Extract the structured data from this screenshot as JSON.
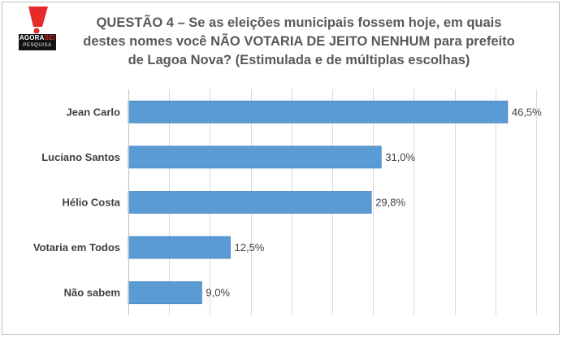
{
  "logo": {
    "brand_a": "AGORA",
    "brand_b": "SEI",
    "sub": "PESQUISA"
  },
  "title_lines": [
    "QUESTÃO 4 – Se as eleições municipais fossem hoje, em quais",
    "destes nomes você NÃO VOTARIA DE JEITO NENHUM para prefeito",
    "de Lagoa Nova? (Estimulada e de múltiplas escolhas)"
  ],
  "chart_data": {
    "type": "bar",
    "orientation": "horizontal",
    "title": "QUESTÃO 4 – Se as eleições municipais fossem hoje, em quais destes nomes você NÃO VOTARIA DE JEITO NENHUM para prefeito de Lagoa Nova? (Estimulada e de múltiplas escolhas)",
    "categories": [
      "Jean Carlo",
      "Luciano Santos",
      "Hélio Costa",
      "Votaria em Todos",
      "Não sabem"
    ],
    "values": [
      46.5,
      31.0,
      29.8,
      12.5,
      9.0
    ],
    "value_labels": [
      "46,5%",
      "31,0%",
      "29,8%",
      "12,5%",
      "9,0%"
    ],
    "xlim": [
      0,
      50
    ],
    "grid": true,
    "bar_color": "#5b9bd5",
    "grid_color": "#d9d9d9",
    "xlabel": "",
    "ylabel": ""
  }
}
